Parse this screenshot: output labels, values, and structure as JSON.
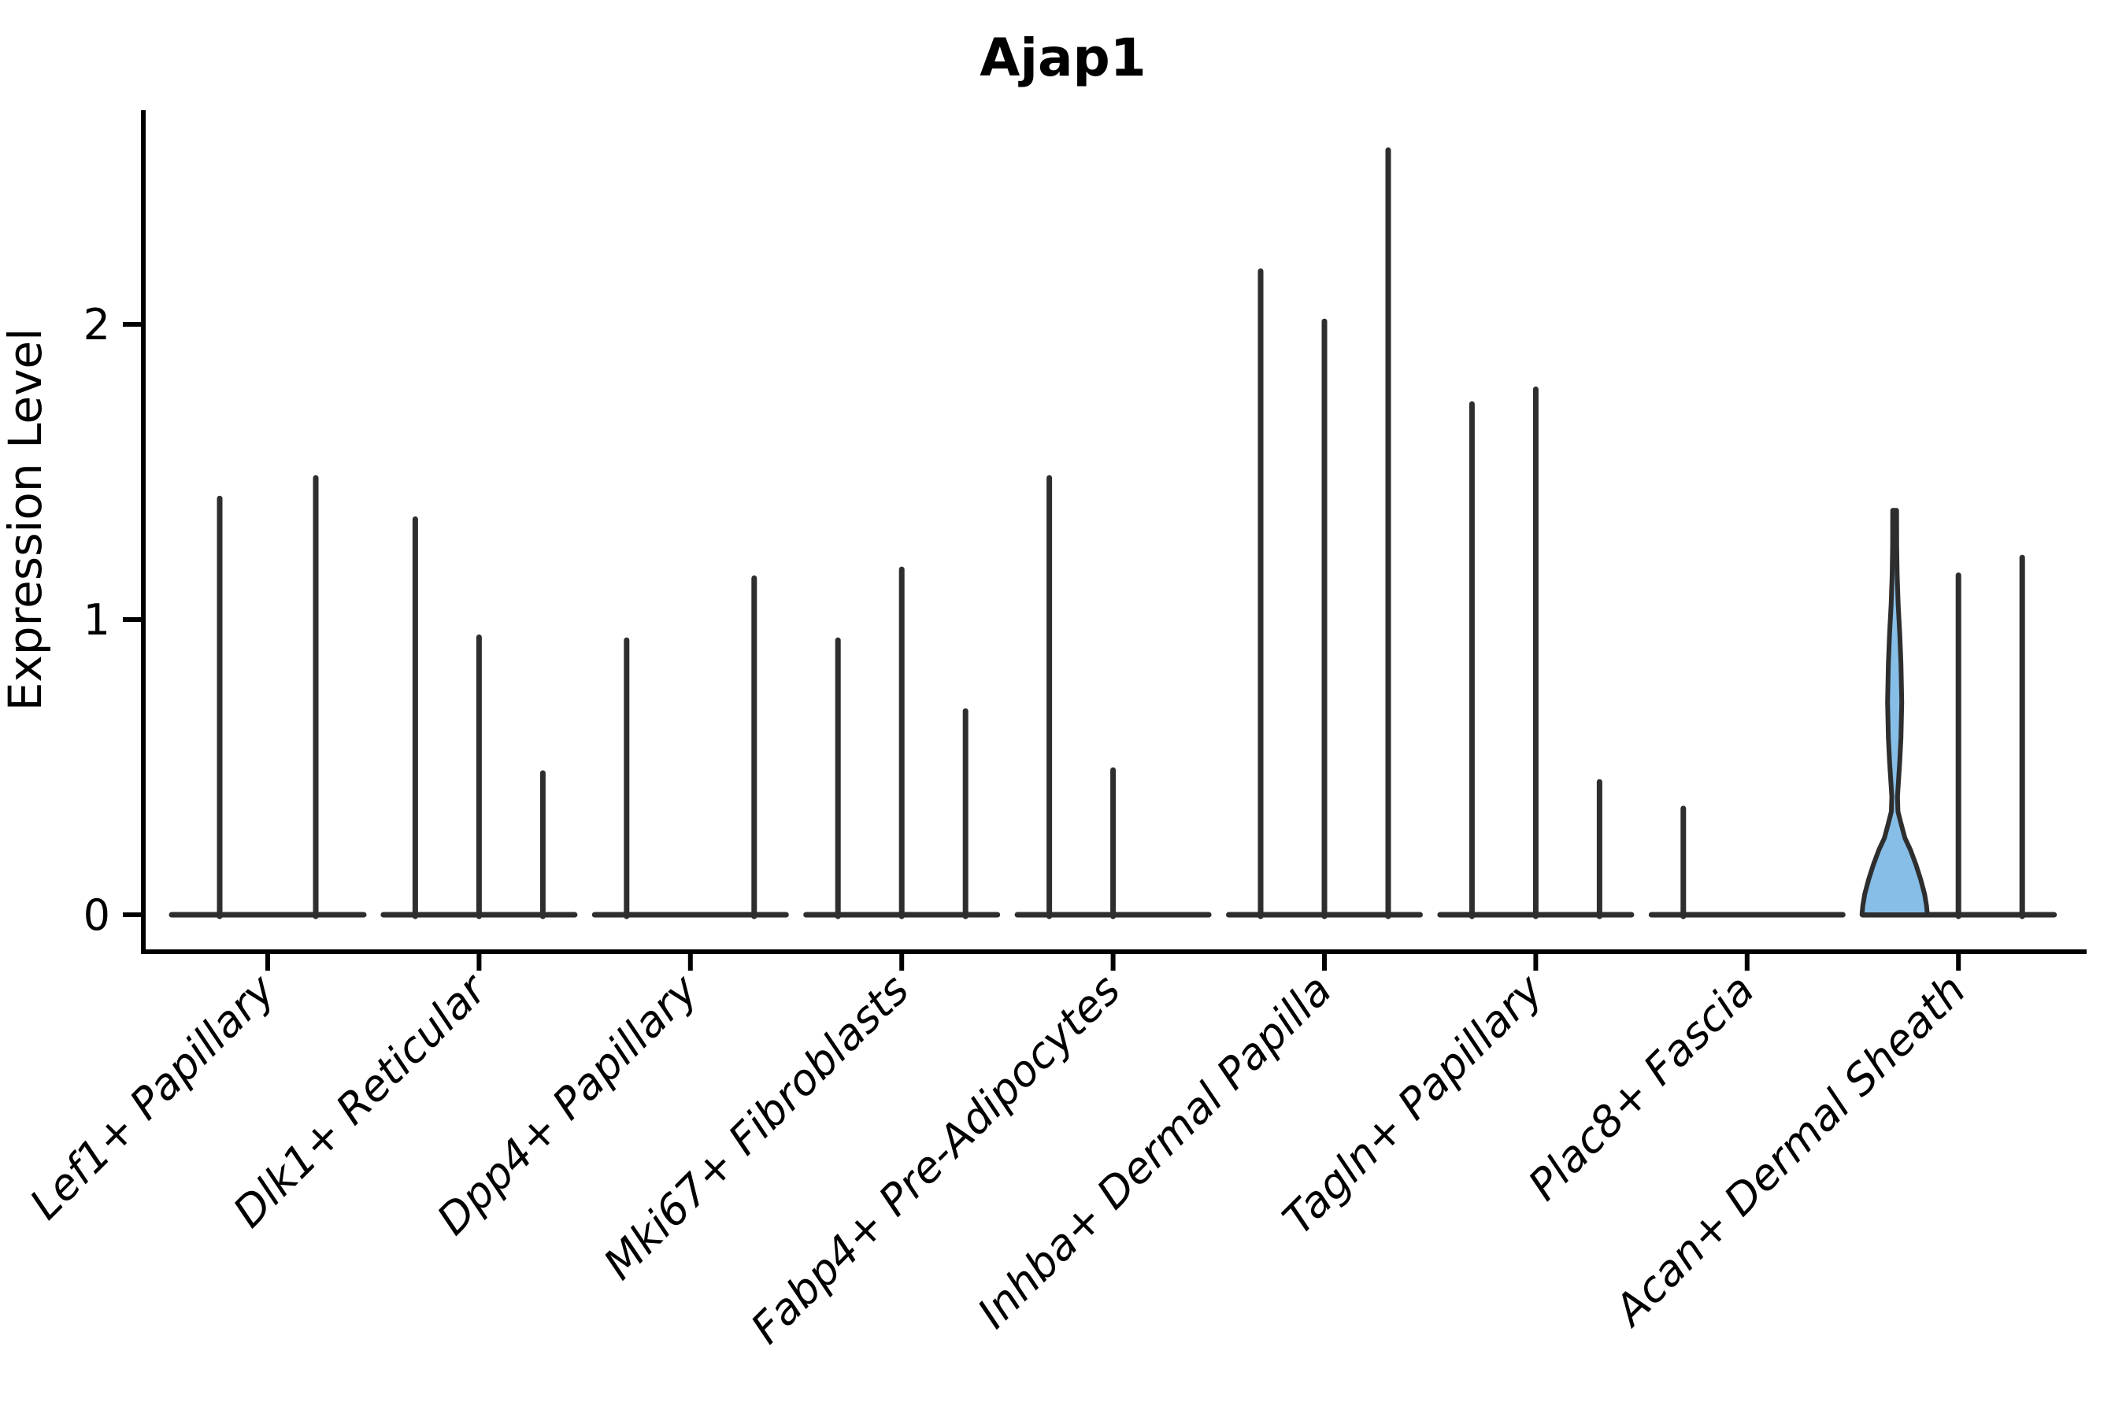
{
  "chart_data": {
    "type": "violin",
    "title": "Ajap1",
    "ylabel": "Expression Level",
    "xlabel": "",
    "yticks": [
      0,
      1,
      2
    ],
    "ylim": [
      -0.13,
      2.73
    ],
    "grid": false,
    "legend": "none",
    "categories": [
      "Lef1+ Papillary",
      "Dlk1+ Reticular",
      "Dpp4+ Papillary",
      "Mki67+ Fibroblasts",
      "Fabp4+ Pre-Adipocytes",
      "Inhba+ Dermal Papilla",
      "Tagln+ Papillary",
      "Plac8+ Fascia",
      "Acan+ Dermal Sheath"
    ],
    "groups": [
      {
        "category": "Lef1+ Papillary",
        "violins": [
          {
            "max": 1.41
          },
          {
            "max": 1.48
          }
        ]
      },
      {
        "category": "Dlk1+ Reticular",
        "violins": [
          {
            "max": 1.34
          },
          {
            "max": 0.94
          },
          {
            "max": 0.48
          }
        ]
      },
      {
        "category": "Dpp4+ Papillary",
        "violins": [
          {
            "max": 0.93
          },
          {
            "max": 0.0
          },
          {
            "max": 1.14
          }
        ]
      },
      {
        "category": "Mki67+ Fibroblasts",
        "violins": [
          {
            "max": 0.93
          },
          {
            "max": 1.17
          },
          {
            "max": 0.69
          }
        ]
      },
      {
        "category": "Fabp4+ Pre-Adipocytes",
        "violins": [
          {
            "max": 1.48
          },
          {
            "max": 0.49
          },
          {
            "max": 0.0
          }
        ]
      },
      {
        "category": "Inhba+ Dermal Papilla",
        "violins": [
          {
            "max": 2.18
          },
          {
            "max": 2.01
          },
          {
            "max": 2.59
          }
        ]
      },
      {
        "category": "Tagln+ Papillary",
        "violins": [
          {
            "max": 1.73
          },
          {
            "max": 1.78
          },
          {
            "max": 0.45
          }
        ]
      },
      {
        "category": "Plac8+ Fascia",
        "violins": [
          {
            "max": 0.36
          },
          {
            "max": 0.0
          },
          {
            "max": 0.0
          }
        ]
      },
      {
        "category": "Acan+ Dermal Sheath",
        "violins": [
          {
            "max": 1.37,
            "filled": true,
            "profile": [
              [
                1.37,
                2.5
              ],
              [
                1.25,
                2.6
              ],
              [
                1.15,
                3.2
              ],
              [
                1.05,
                4.5
              ],
              [
                0.95,
                6.5
              ],
              [
                0.85,
                8.0
              ],
              [
                0.72,
                9.0
              ],
              [
                0.6,
                8.0
              ],
              [
                0.52,
                6.5
              ],
              [
                0.45,
                4.8
              ],
              [
                0.4,
                3.6
              ],
              [
                0.35,
                4.2
              ],
              [
                0.31,
                8.0
              ],
              [
                0.26,
                13.0
              ],
              [
                0.22,
                20.0
              ],
              [
                0.17,
                27.0
              ],
              [
                0.12,
                33.0
              ],
              [
                0.07,
                38.0
              ],
              [
                0.03,
                40.5
              ],
              [
                0.0,
                41.5
              ]
            ]
          },
          {
            "max": 1.15
          },
          {
            "max": 1.21
          }
        ]
      }
    ],
    "colors": {
      "violin_fill": "#87BEE8",
      "violin_line": "#2E2E2E",
      "axis": "#000000",
      "text": "#000000",
      "background": "#ffffff"
    }
  }
}
